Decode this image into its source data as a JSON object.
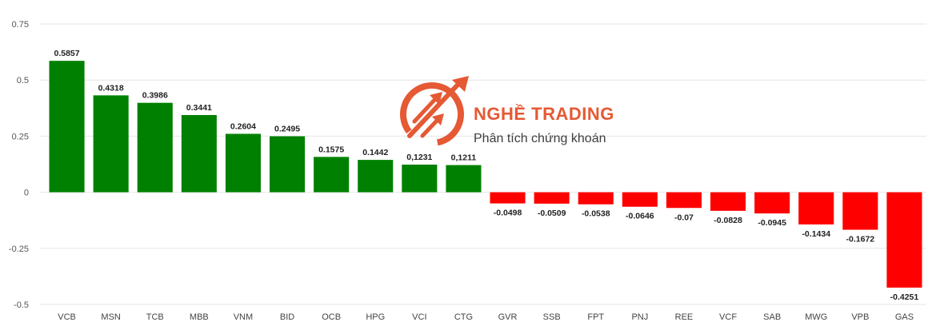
{
  "chart_data": {
    "type": "bar",
    "title": "",
    "xlabel": "",
    "ylabel": "",
    "ylim": [
      -0.5,
      0.75
    ],
    "y_ticks": [
      0.75,
      0.5,
      0.25,
      0,
      -0.25,
      -0.5
    ],
    "y_tick_labels": [
      "0.75",
      "0.5",
      "0.25",
      "0",
      "-0.25",
      "-0.5"
    ],
    "grid": true,
    "categories": [
      "VCB",
      "MSN",
      "TCB",
      "MBB",
      "VNM",
      "BID",
      "OCB",
      "HPG",
      "VCI",
      "CTG",
      "GVR",
      "SSB",
      "FPT",
      "PNJ",
      "REE",
      "VCF",
      "SAB",
      "MWG",
      "VPB",
      "GAS"
    ],
    "values": [
      0.5857,
      0.4318,
      0.3986,
      0.3441,
      0.2604,
      0.2495,
      0.1575,
      0.1442,
      0.1231,
      0.1211,
      -0.0498,
      -0.0509,
      -0.0538,
      -0.0646,
      -0.07,
      -0.0828,
      -0.0945,
      -0.1434,
      -0.1672,
      -0.4251
    ],
    "data_labels": [
      "0.5857",
      "0.4318",
      "0.3986",
      "0.3441",
      "0.2604",
      "0.2495",
      "0.1575",
      "0.1442",
      "0,1231",
      "0,1211",
      "-0.0498",
      "-0.0509",
      "-0.0538",
      "-0.0646",
      "-0.07",
      "-0.0828",
      "-0.0945",
      "-0.1434",
      "-0.1672",
      "-0.4251"
    ],
    "colors": {
      "positive": "#008000",
      "negative": "#ff0000"
    }
  },
  "watermark": {
    "brand": "NGHỀ TRADING",
    "tagline": "Phân tích chứng khoán",
    "color": "#e4512a",
    "icon": "trending-up-arrows-logo"
  }
}
